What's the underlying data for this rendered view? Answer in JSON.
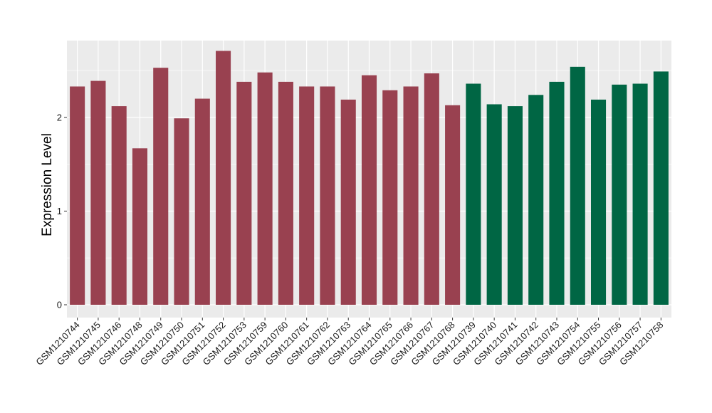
{
  "chart_data": {
    "type": "bar",
    "title": "",
    "xlabel": "",
    "ylabel": "Expression Level",
    "ylim": [
      0,
      2.82
    ],
    "yticks": [
      0,
      1,
      2
    ],
    "grid": true,
    "background": "#ebebeb",
    "categories": [
      "GSM1210744",
      "GSM1210745",
      "GSM1210746",
      "GSM1210748",
      "GSM1210749",
      "GSM1210750",
      "GSM1210751",
      "GSM1210752",
      "GSM1210753",
      "GSM1210759",
      "GSM1210760",
      "GSM1210761",
      "GSM1210762",
      "GSM1210763",
      "GSM1210764",
      "GSM1210765",
      "GSM1210766",
      "GSM1210767",
      "GSM1210768",
      "GSM1210739",
      "GSM1210740",
      "GSM1210741",
      "GSM1210742",
      "GSM1210743",
      "GSM1210754",
      "GSM1210755",
      "GSM1210756",
      "GSM1210757",
      "GSM1210758"
    ],
    "values": [
      2.33,
      2.39,
      2.12,
      1.67,
      2.53,
      1.99,
      2.2,
      2.71,
      2.38,
      2.48,
      2.38,
      2.33,
      2.33,
      2.19,
      2.45,
      2.29,
      2.33,
      2.47,
      2.13,
      2.36,
      2.14,
      2.12,
      2.24,
      2.38,
      2.54,
      2.19,
      2.35,
      2.36,
      2.49
    ],
    "groups": [
      "a",
      "a",
      "a",
      "a",
      "a",
      "a",
      "a",
      "a",
      "a",
      "a",
      "a",
      "a",
      "a",
      "a",
      "a",
      "a",
      "a",
      "a",
      "a",
      "b",
      "b",
      "b",
      "b",
      "b",
      "b",
      "b",
      "b",
      "b",
      "b"
    ],
    "group_colors": {
      "a": "#994150",
      "b": "#006644"
    }
  }
}
